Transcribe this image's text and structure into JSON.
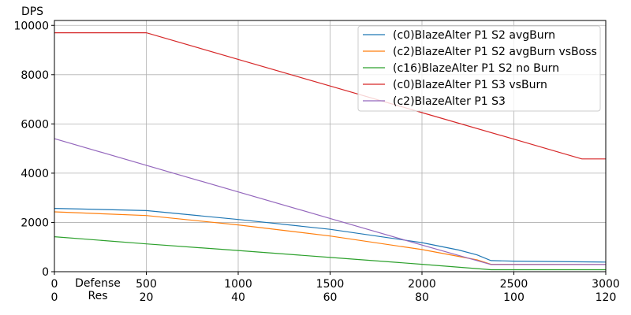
{
  "chart_data": {
    "type": "line",
    "ylabel": "DPS",
    "xlabel_lines": [
      "Defense",
      "Res"
    ],
    "xlim": [
      0,
      3000
    ],
    "ylim": [
      0,
      10200
    ],
    "x_ticks": [
      {
        "value": 0,
        "label": "0",
        "sublabel": "0"
      },
      {
        "value": 500,
        "label": "500",
        "sublabel": "20"
      },
      {
        "value": 1000,
        "label": "1000",
        "sublabel": "40"
      },
      {
        "value": 1500,
        "label": "1500",
        "sublabel": "60"
      },
      {
        "value": 2000,
        "label": "2000",
        "sublabel": "80"
      },
      {
        "value": 2500,
        "label": "2500",
        "sublabel": "100"
      },
      {
        "value": 3000,
        "label": "3000",
        "sublabel": "120"
      }
    ],
    "y_ticks": [
      {
        "value": 0,
        "label": "0"
      },
      {
        "value": 2000,
        "label": "2000"
      },
      {
        "value": 4000,
        "label": "4000"
      },
      {
        "value": 6000,
        "label": "6000"
      },
      {
        "value": 8000,
        "label": "8000"
      },
      {
        "value": 10000,
        "label": "10000"
      }
    ],
    "grid": true,
    "legend_position": "top-right",
    "series": [
      {
        "name": "(c0)BlazeAlter P1 S2 avgBurn",
        "color": "#1f77b4",
        "x": [
          0,
          500,
          1000,
          1500,
          2000,
          2200,
          2300,
          2375,
          2500,
          3000
        ],
        "y": [
          2570,
          2480,
          2120,
          1720,
          1180,
          880,
          680,
          450,
          430,
          390
        ]
      },
      {
        "name": "(c2)BlazeAlter P1 S2 avgBurn vsBoss",
        "color": "#ff7f0e",
        "x": [
          0,
          500,
          1000,
          1500,
          2000,
          2300,
          2375,
          3000
        ],
        "y": [
          2430,
          2280,
          1900,
          1450,
          900,
          480,
          300,
          290
        ]
      },
      {
        "name": "(c16)BlazeAlter P1 S2 no Burn",
        "color": "#2ca02c",
        "x": [
          0,
          500,
          1000,
          1500,
          2000,
          2375,
          3000
        ],
        "y": [
          1420,
          1130,
          860,
          580,
          300,
          80,
          80
        ]
      },
      {
        "name": "(c0)BlazeAlter P1 S3 vsBurn",
        "color": "#d62728",
        "x": [
          0,
          500,
          1000,
          1500,
          2000,
          2500,
          2870,
          3000
        ],
        "y": [
          9700,
          9700,
          8620,
          7540,
          6460,
          5380,
          4580,
          4580
        ]
      },
      {
        "name": "(c2)BlazeAlter P1 S3",
        "color": "#9467bd",
        "x": [
          0,
          500,
          1000,
          1500,
          2000,
          2375,
          3000
        ],
        "y": [
          5400,
          4320,
          3240,
          2160,
          1080,
          290,
          290
        ]
      }
    ]
  }
}
